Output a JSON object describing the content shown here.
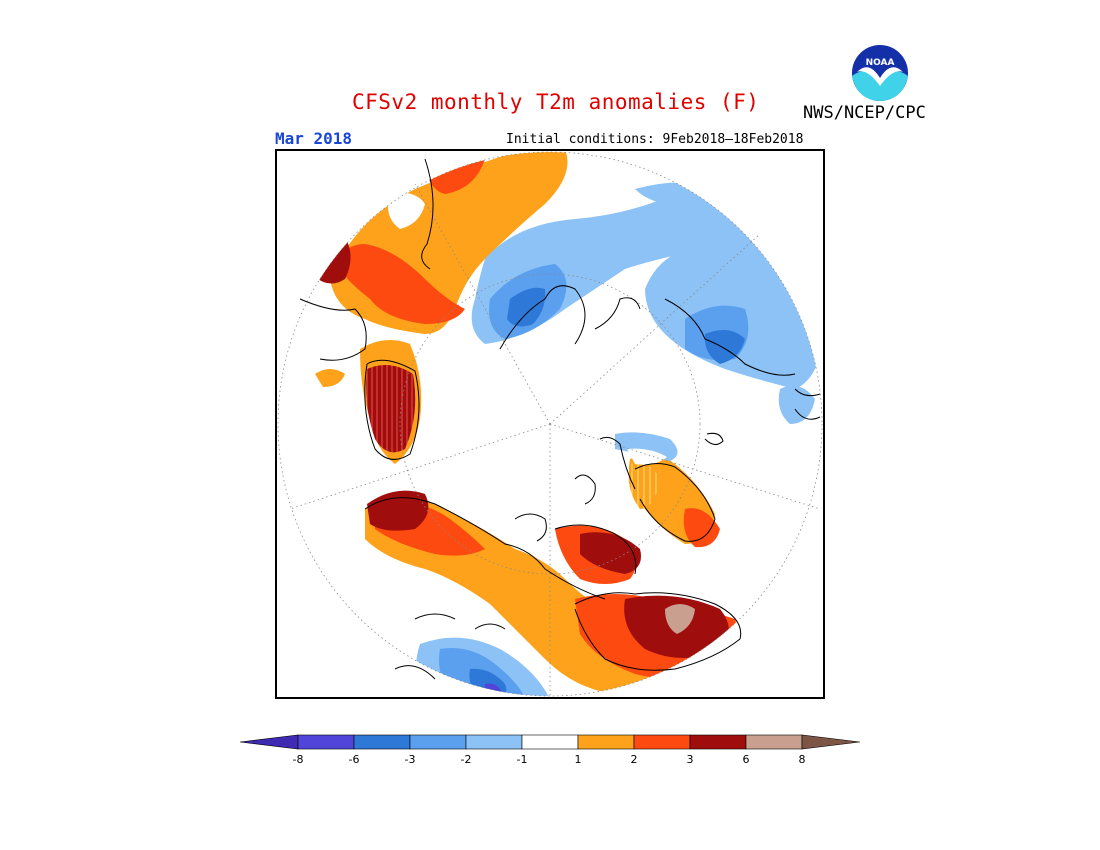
{
  "title": "CFSv2 monthly T2m anomalies (F)",
  "agency": "NWS/NCEP/CPC",
  "logo_text": "NOAA",
  "forecast_month": "Mar 2018",
  "initial_conditions": "Initial conditions: 9Feb2018–18Feb2018",
  "colorbar": {
    "tick_labels": [
      "-8",
      "-6",
      "-3",
      "-2",
      "-1",
      "1",
      "2",
      "3",
      "6",
      "8"
    ],
    "colors": [
      "#3f2ab4",
      "#5045d8",
      "#2e78d8",
      "#5aa0ef",
      "#8cc2f6",
      "#ffffff",
      "#fda21a",
      "#fd4a10",
      "#a00d0d",
      "#c9a090",
      "#7d5545"
    ]
  },
  "map": {
    "projection": "north-polar-stereographic",
    "regions": [
      {
        "name": "europe-warm",
        "category": "+1 to +6"
      },
      {
        "name": "greenland-warm",
        "category": "+3 to +6"
      },
      {
        "name": "western-russia-cold",
        "category": "-1 to -6"
      },
      {
        "name": "eastern-siberia-cold",
        "category": "-1 to -6"
      },
      {
        "name": "alaska-warm",
        "category": "+1 to +3"
      },
      {
        "name": "canada-arctic-warm",
        "category": "+3 to +8"
      },
      {
        "name": "hudson-bay-warm",
        "category": "+3 to +8"
      },
      {
        "name": "western-us-cold",
        "category": "-1 to -8"
      }
    ]
  }
}
